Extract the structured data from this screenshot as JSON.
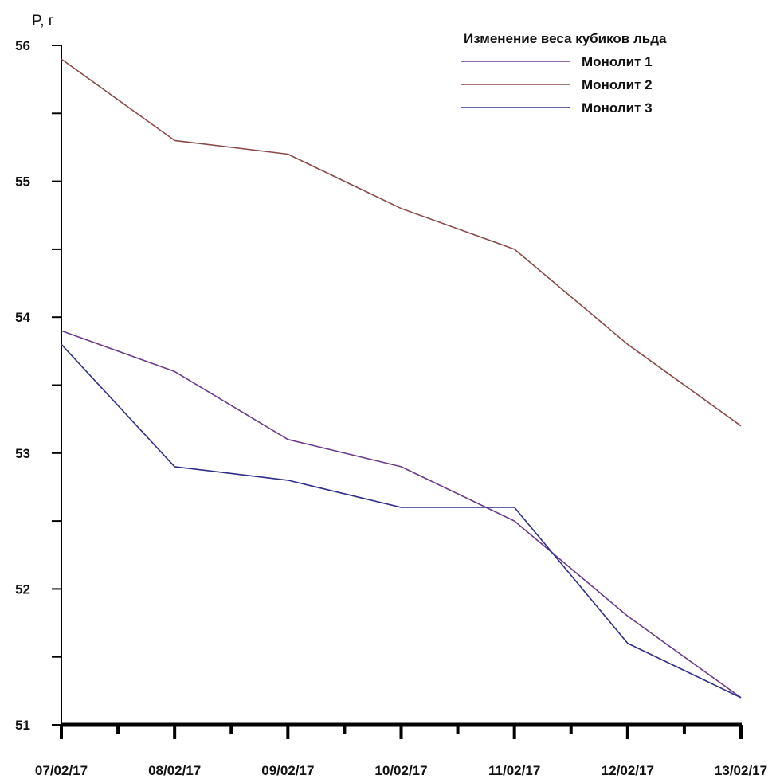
{
  "chart_data": {
    "type": "line",
    "title": "",
    "ylabel": "P, г",
    "xlabel": "",
    "ylim": [
      51,
      56
    ],
    "y_ticks": [
      51,
      52,
      53,
      54,
      55,
      56
    ],
    "categories": [
      "07/02/17",
      "08/02/17",
      "09/02/17",
      "10/02/17",
      "11/02/17",
      "12/02/17",
      "13/02/17"
    ],
    "legend": {
      "title": "Изменение веса кубиков льда",
      "position": "top-right"
    },
    "grid": false,
    "series": [
      {
        "name": "Монолит 1",
        "color": "#6b3a8a",
        "values": [
          53.9,
          53.6,
          53.1,
          52.9,
          52.5,
          51.8,
          51.2
        ]
      },
      {
        "name": "Монолит 2",
        "color": "#8b4a4a",
        "values": [
          55.9,
          55.3,
          55.2,
          54.8,
          54.5,
          53.8,
          53.2
        ]
      },
      {
        "name": "Монолит 3",
        "color": "#2e2e8a",
        "values": [
          53.8,
          52.9,
          52.8,
          52.6,
          52.6,
          51.6,
          51.2
        ]
      }
    ]
  }
}
